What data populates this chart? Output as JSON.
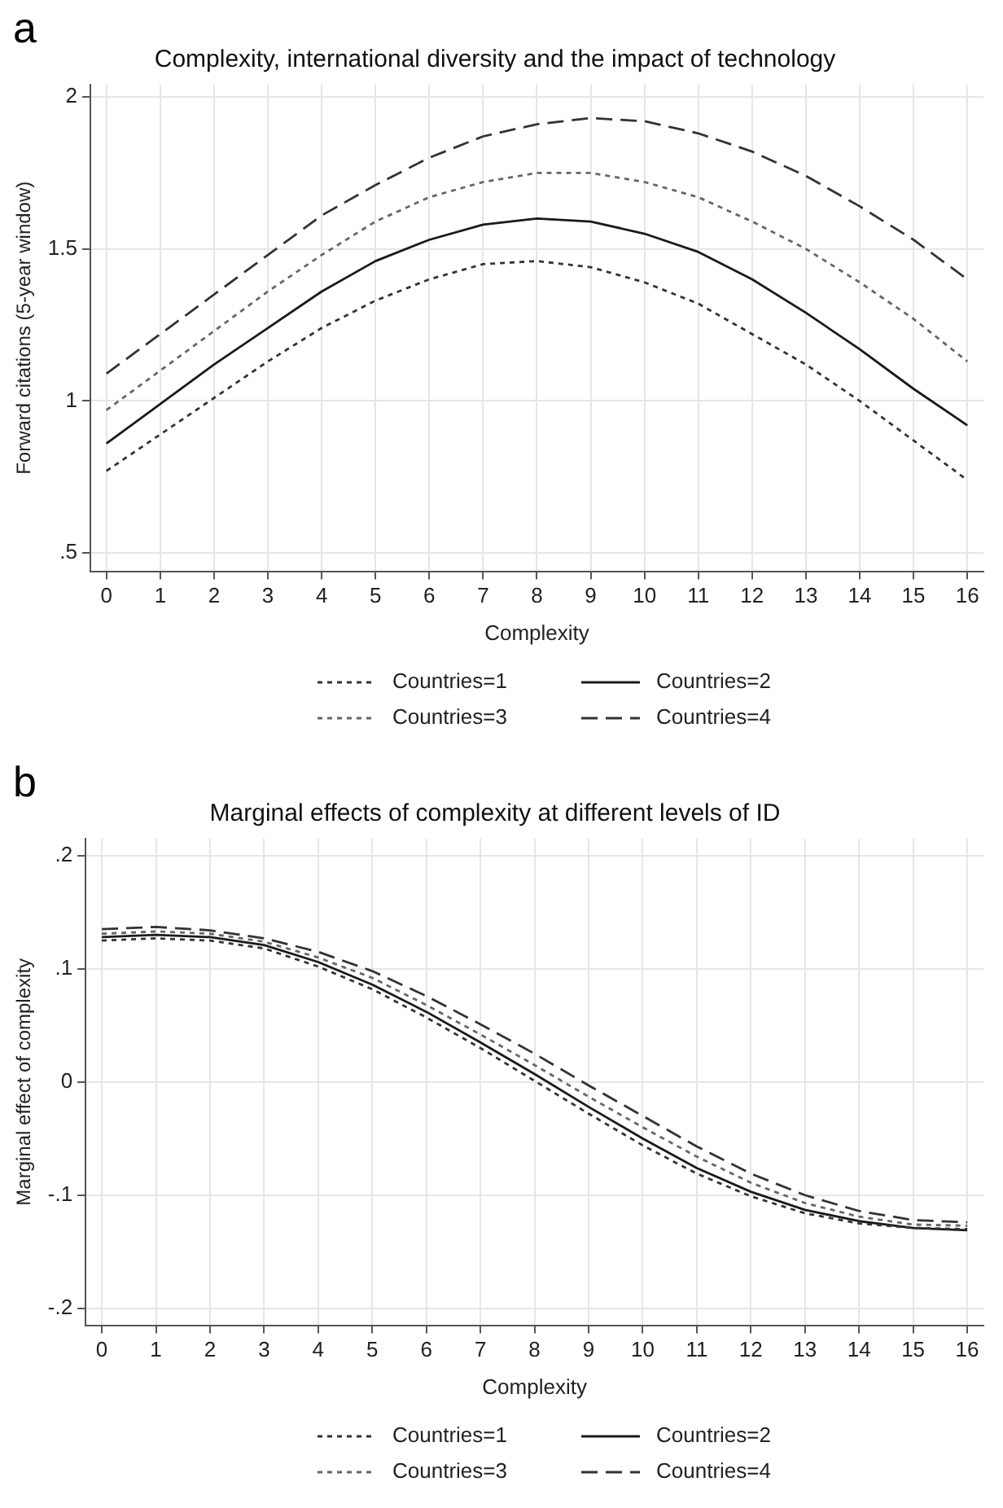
{
  "chart_data": [
    {
      "type": "line",
      "title": "Complexity, international diversity and the impact of technology",
      "xlabel": "Complexity",
      "ylabel": "Forward citations (5-year window)",
      "annotations": [
        "a"
      ],
      "x": [
        0,
        1,
        2,
        3,
        4,
        5,
        6,
        7,
        8,
        9,
        10,
        11,
        12,
        13,
        14,
        15,
        16
      ],
      "xlim": [
        -0.3,
        16.3
      ],
      "xticks": [
        0,
        1,
        2,
        3,
        4,
        5,
        6,
        7,
        8,
        9,
        10,
        11,
        12,
        13,
        14,
        15,
        16
      ],
      "ylim": [
        0.44,
        2.04
      ],
      "yticks": [
        {
          "value": 0.5,
          "label": ".5"
        },
        1,
        1.5,
        2
      ],
      "grid": true,
      "legend": "bottom",
      "marker": "none",
      "series": [
        {
          "name": "Countries=1",
          "color": "#333333",
          "line_style": "dotted",
          "values": [
            0.77,
            0.89,
            1.01,
            1.13,
            1.24,
            1.33,
            1.4,
            1.45,
            1.46,
            1.44,
            1.39,
            1.32,
            1.22,
            1.12,
            1.0,
            0.87,
            0.74
          ]
        },
        {
          "name": "Countries=2",
          "color": "#1a1a1a",
          "line_style": "solid",
          "values": [
            0.86,
            0.99,
            1.12,
            1.24,
            1.36,
            1.46,
            1.53,
            1.58,
            1.6,
            1.59,
            1.55,
            1.49,
            1.4,
            1.29,
            1.17,
            1.04,
            0.92
          ]
        },
        {
          "name": "Countries=3",
          "color": "#666666",
          "line_style": "dotted",
          "values": [
            0.97,
            1.1,
            1.23,
            1.36,
            1.48,
            1.59,
            1.67,
            1.72,
            1.75,
            1.75,
            1.72,
            1.67,
            1.59,
            1.5,
            1.39,
            1.27,
            1.13
          ]
        },
        {
          "name": "Countries=4",
          "color": "#333333",
          "line_style": "dashed",
          "values": [
            1.09,
            1.22,
            1.35,
            1.48,
            1.61,
            1.71,
            1.8,
            1.87,
            1.91,
            1.93,
            1.92,
            1.88,
            1.82,
            1.74,
            1.64,
            1.53,
            1.4
          ]
        }
      ]
    },
    {
      "type": "line",
      "title": "Marginal effects of complexity at different levels of ID",
      "xlabel": "Complexity",
      "ylabel": "Marginal effect of complexity",
      "annotations": [
        "b"
      ],
      "x": [
        0,
        1,
        2,
        3,
        4,
        5,
        6,
        7,
        8,
        9,
        10,
        11,
        12,
        13,
        14,
        15,
        16
      ],
      "xlim": [
        -0.3,
        16.3
      ],
      "xticks": [
        0,
        1,
        2,
        3,
        4,
        5,
        6,
        7,
        8,
        9,
        10,
        11,
        12,
        13,
        14,
        15,
        16
      ],
      "ylim": [
        -0.215,
        0.215
      ],
      "yticks": [
        {
          "value": -0.2,
          "label": "-.2"
        },
        {
          "value": -0.1,
          "label": "-.1"
        },
        0,
        {
          "value": 0.1,
          "label": ".1"
        },
        {
          "value": 0.2,
          "label": ".2"
        }
      ],
      "grid": true,
      "legend": "bottom",
      "marker": "none",
      "series": [
        {
          "name": "Countries=1",
          "color": "#333333",
          "line_style": "dotted",
          "values": [
            0.125,
            0.127,
            0.125,
            0.118,
            0.102,
            0.082,
            0.057,
            0.03,
            0.001,
            -0.028,
            -0.056,
            -0.081,
            -0.101,
            -0.116,
            -0.125,
            -0.129,
            -0.13
          ]
        },
        {
          "name": "Countries=2",
          "color": "#1a1a1a",
          "line_style": "solid",
          "values": [
            0.128,
            0.13,
            0.128,
            0.121,
            0.106,
            0.086,
            0.062,
            0.035,
            0.007,
            -0.022,
            -0.05,
            -0.076,
            -0.097,
            -0.113,
            -0.123,
            -0.129,
            -0.131
          ]
        },
        {
          "name": "Countries=3",
          "color": "#666666",
          "line_style": "dotted",
          "values": [
            0.131,
            0.133,
            0.131,
            0.124,
            0.11,
            0.092,
            0.068,
            0.042,
            0.015,
            -0.013,
            -0.04,
            -0.066,
            -0.089,
            -0.107,
            -0.119,
            -0.126,
            -0.127
          ]
        },
        {
          "name": "Countries=4",
          "color": "#333333",
          "line_style": "dashed",
          "values": [
            0.135,
            0.137,
            0.134,
            0.127,
            0.115,
            0.098,
            0.076,
            0.051,
            0.025,
            -0.003,
            -0.03,
            -0.057,
            -0.081,
            -0.1,
            -0.114,
            -0.122,
            -0.124
          ]
        }
      ]
    }
  ]
}
